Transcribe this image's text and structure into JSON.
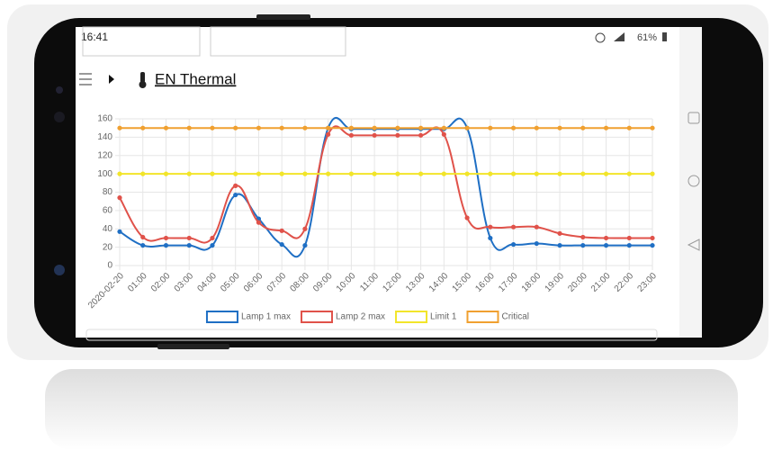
{
  "status_bar": {
    "time": "16:41",
    "battery": "61%"
  },
  "page": {
    "title": "EN Thermal"
  },
  "chart_data": {
    "type": "line",
    "categories": [
      "2020-02-20",
      "01:00",
      "02:00",
      "03:00",
      "04:00",
      "05:00",
      "06:00",
      "07:00",
      "08:00",
      "09:00",
      "10:00",
      "11:00",
      "12:00",
      "13:00",
      "14:00",
      "15:00",
      "16:00",
      "17:00",
      "18:00",
      "19:00",
      "20:00",
      "21:00",
      "22:00",
      "23:00"
    ],
    "series": [
      {
        "name": "Lamp 1 max",
        "color": "#1f6fc4",
        "values": [
          37,
          22,
          22,
          22,
          22,
          77,
          51,
          23,
          22,
          150,
          149,
          149,
          149,
          149,
          149,
          150,
          30,
          23,
          24,
          22,
          22,
          22,
          22,
          22
        ]
      },
      {
        "name": "Lamp 2 max",
        "color": "#e0524a",
        "values": [
          74,
          31,
          30,
          30,
          30,
          87,
          47,
          38,
          40,
          143,
          142,
          142,
          142,
          142,
          143,
          52,
          42,
          42,
          42,
          35,
          31,
          30,
          30,
          30
        ]
      },
      {
        "name": "Limit 1",
        "color": "#f2e52a",
        "values": [
          100,
          100,
          100,
          100,
          100,
          100,
          100,
          100,
          100,
          100,
          100,
          100,
          100,
          100,
          100,
          100,
          100,
          100,
          100,
          100,
          100,
          100,
          100,
          100
        ]
      },
      {
        "name": "Critical",
        "color": "#f0a030",
        "values": [
          150,
          150,
          150,
          150,
          150,
          150,
          150,
          150,
          150,
          150,
          150,
          150,
          150,
          150,
          150,
          150,
          150,
          150,
          150,
          150,
          150,
          150,
          150,
          150
        ]
      }
    ],
    "ylim": [
      0,
      160
    ],
    "yticks": [
      0,
      20,
      40,
      60,
      80,
      100,
      120,
      140,
      160
    ],
    "grid": true,
    "smooth": true,
    "legend": "bottom"
  }
}
